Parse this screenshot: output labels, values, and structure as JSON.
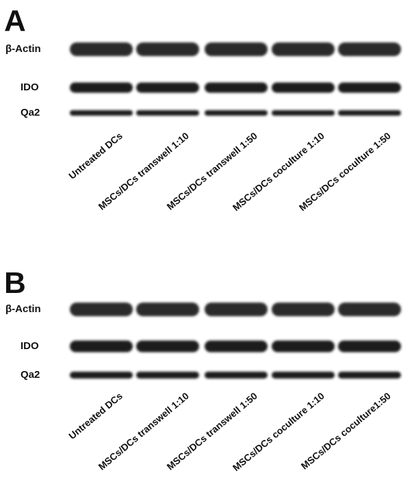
{
  "panels": [
    {
      "label": "A",
      "rows": [
        "β-Actin",
        "IDO",
        "Qa2"
      ],
      "lanes": [
        "Untreated DCs",
        "MSCs/DCs transwell 1:10",
        "MSCs/DCs transwell 1:50",
        "MSCs/DCs coculture 1:10",
        "MSCs/DCs coculture 1:50"
      ]
    },
    {
      "label": "B",
      "rows": [
        "β-Actin",
        "IDO",
        "Qa2"
      ],
      "lanes": [
        "Untreated DCs",
        "MSCs/DCs transwell 1:10",
        "MSCs/DCs transwell 1:50",
        "MSCs/DCs coculture 1:10",
        "MSCs/DCs coculture1:50"
      ]
    }
  ]
}
